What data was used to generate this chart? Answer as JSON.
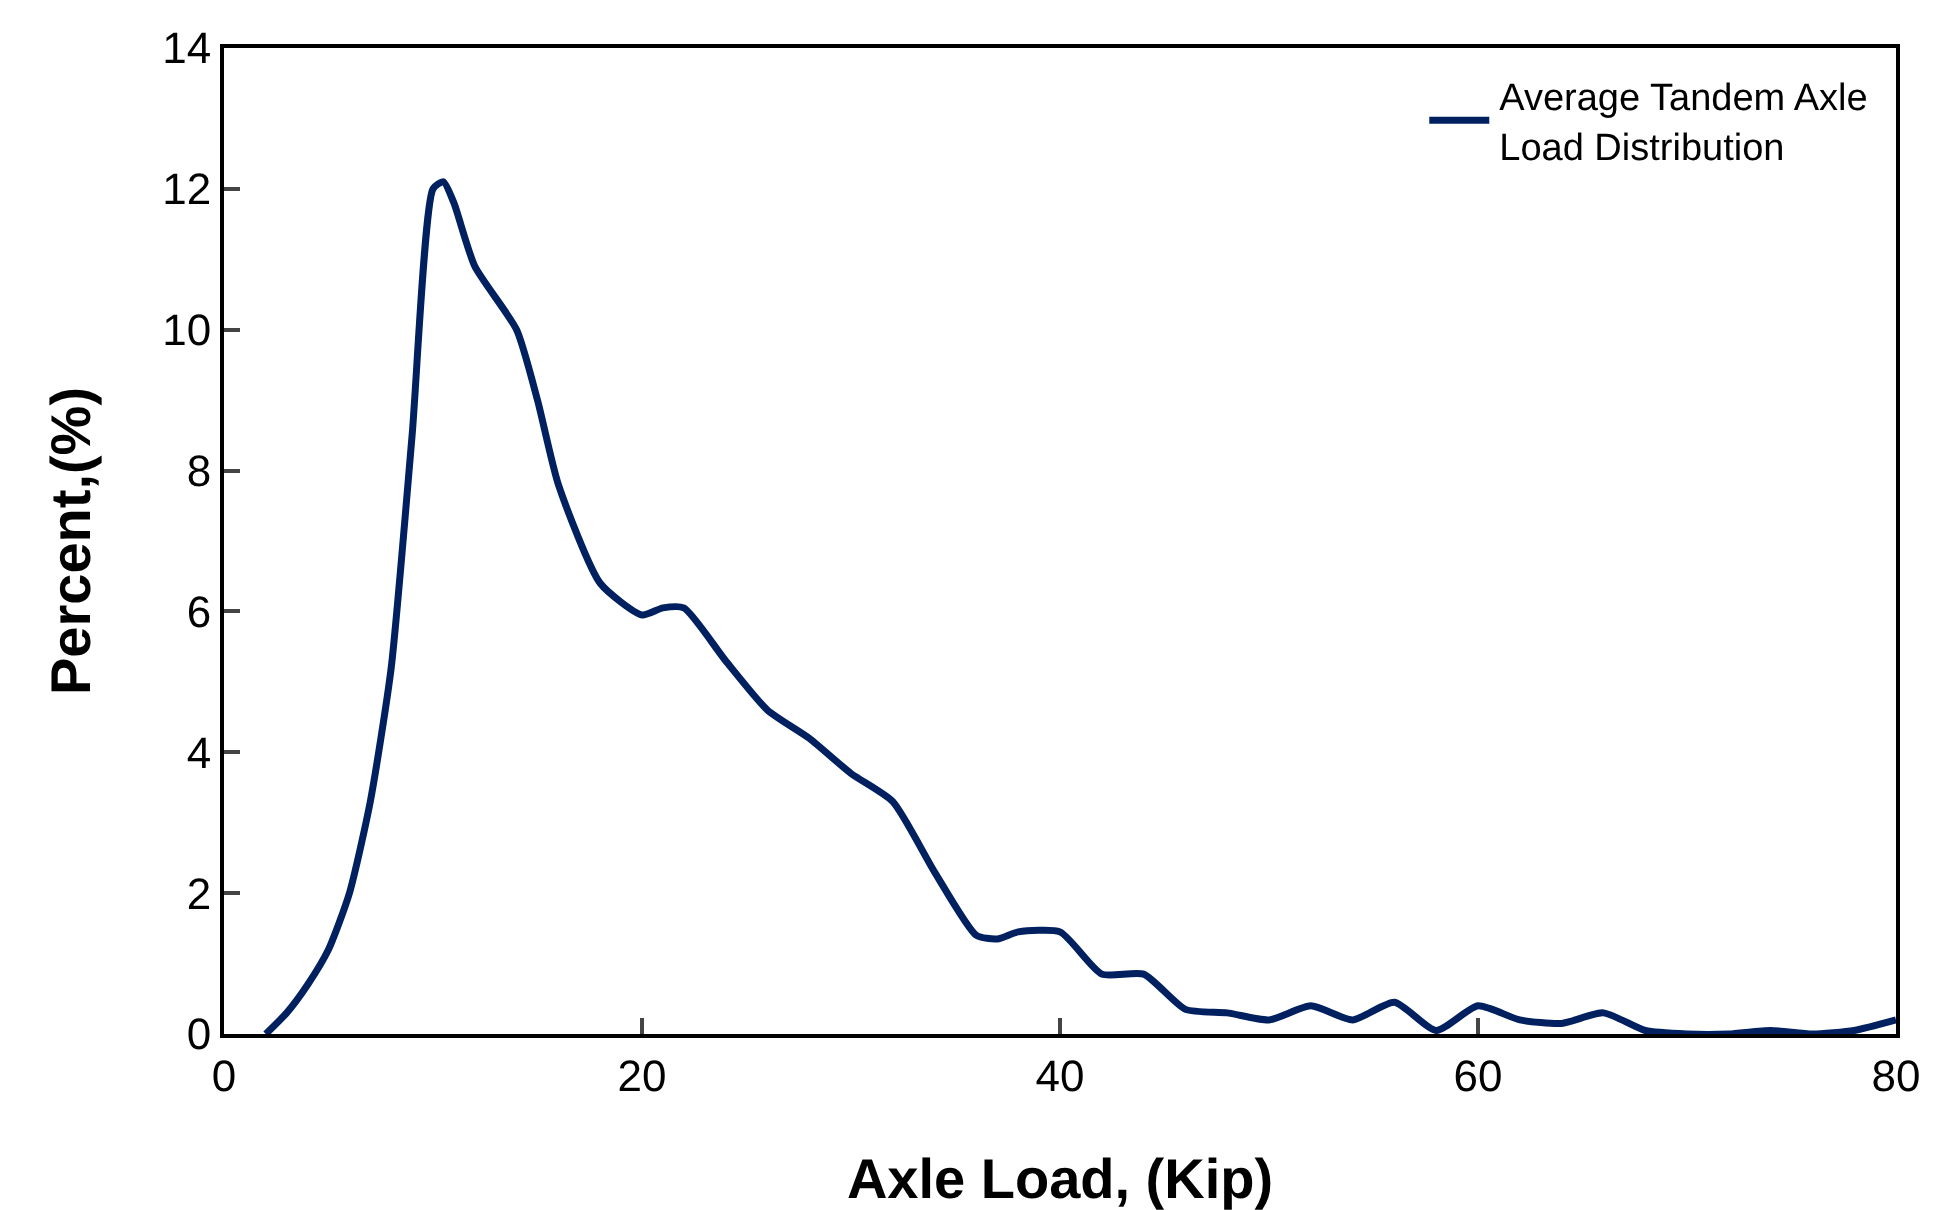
{
  "chart_data": {
    "type": "line",
    "xlabel": "Axle Load, (Kip)",
    "ylabel": "Percent,(%)",
    "x": [
      2,
      3,
      4,
      5,
      6,
      7,
      8,
      9,
      10,
      10.5,
      11,
      12,
      14,
      15,
      16,
      18,
      20,
      21,
      22,
      24,
      26,
      28,
      30,
      32,
      34,
      36,
      37,
      38,
      40,
      42,
      44,
      46,
      48,
      50,
      52,
      54,
      56,
      58,
      60,
      62,
      64,
      66,
      68,
      70,
      72,
      74,
      76,
      78,
      80
    ],
    "series": [
      {
        "name": "Average Tandem Axle Load Distribution",
        "color": "#002060",
        "values": [
          0,
          0.3,
          0.7,
          1.2,
          2,
          3.3,
          5.2,
          8.5,
          12,
          12.1,
          11.8,
          10.9,
          10,
          9,
          7.8,
          6.4,
          5.95,
          6.05,
          6.05,
          5.3,
          4.6,
          4.2,
          3.7,
          3.3,
          2.3,
          1.4,
          1.35,
          1.45,
          1.45,
          0.85,
          0.85,
          0.35,
          0.3,
          0.2,
          0.4,
          0.2,
          0.45,
          0.05,
          0.4,
          0.2,
          0.15,
          0.3,
          0.05,
          0,
          0,
          0.05,
          0,
          0.05,
          0.2
        ]
      }
    ],
    "xlim": [
      0,
      80
    ],
    "xticks": [
      0,
      20,
      40,
      60,
      80
    ],
    "ylim": [
      0,
      14
    ],
    "yticks": [
      0,
      2,
      4,
      6,
      8,
      10,
      12,
      14
    ],
    "grid": false,
    "legend": "top right",
    "marker": "none",
    "line_style": "solid"
  }
}
